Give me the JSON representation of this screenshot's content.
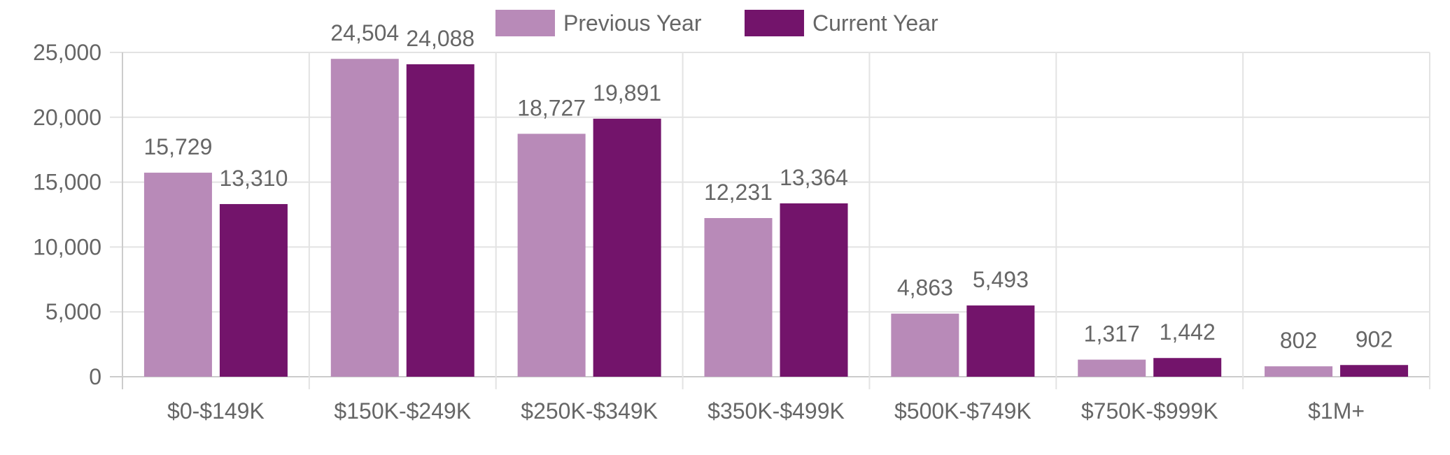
{
  "chart_data": {
    "type": "bar",
    "title": "",
    "xlabel": "",
    "ylabel": "",
    "categories": [
      "$0-$149K",
      "$150K-$249K",
      "$250K-$349K",
      "$350K-$499K",
      "$500K-$749K",
      "$750K-$999K",
      "$1M+"
    ],
    "series": [
      {
        "name": "Previous Year",
        "color": "#b88ab8",
        "values": [
          15729,
          24504,
          18727,
          12231,
          4863,
          1317,
          802
        ],
        "labels": [
          "15,729",
          "24,504",
          "18,727",
          "12,231",
          "4,863",
          "1,317",
          "802"
        ]
      },
      {
        "name": "Current Year",
        "color": "#73146b",
        "values": [
          13310,
          24088,
          19891,
          13364,
          5493,
          1442,
          902
        ],
        "labels": [
          "13,310",
          "24,088",
          "19,891",
          "13,364",
          "5,493",
          "1,442",
          "902"
        ]
      }
    ],
    "ylim": [
      0,
      25000
    ],
    "yticks": [
      0,
      5000,
      10000,
      15000,
      20000,
      25000
    ],
    "ytick_labels": [
      "0",
      "5,000",
      "10,000",
      "15,000",
      "20,000",
      "25,000"
    ],
    "grid": true,
    "legend_position": "top-center"
  }
}
